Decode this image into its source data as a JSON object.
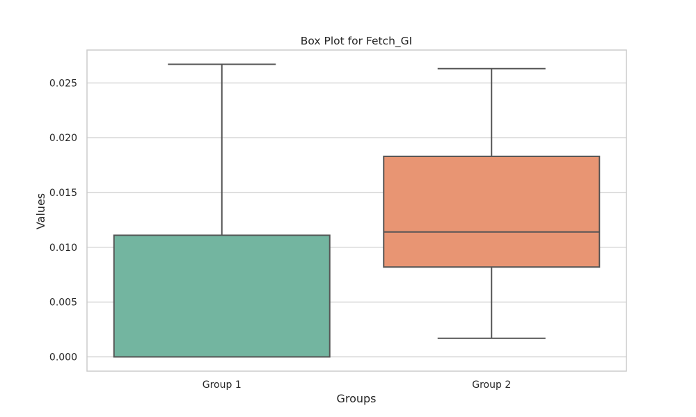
{
  "chart_data": {
    "type": "box",
    "title": "Box Plot for Fetch_GI",
    "xlabel": "Groups",
    "ylabel": "Values",
    "categories": [
      "Group 1",
      "Group 2"
    ],
    "ylim": [
      -0.0013,
      0.028
    ],
    "yticks": [
      0.0,
      0.005,
      0.01,
      0.015,
      0.02,
      0.025
    ],
    "ytick_labels": [
      "0.000",
      "0.005",
      "0.010",
      "0.015",
      "0.020",
      "0.025"
    ],
    "grid": "horizontal",
    "series": [
      {
        "category": "Group 1",
        "whisker_low": 0.0,
        "q1": 0.0,
        "median": 0.0,
        "q3": 0.0111,
        "whisker_high": 0.0267,
        "color": "#73b5a0"
      },
      {
        "category": "Group 2",
        "whisker_low": 0.0017,
        "q1": 0.0082,
        "median": 0.0114,
        "q3": 0.0183,
        "whisker_high": 0.0263,
        "color": "#e89573"
      }
    ],
    "colors": {
      "box_edge": "#555555",
      "grid": "#cccccc",
      "frame": "#cccccc",
      "text": "#262626"
    }
  }
}
